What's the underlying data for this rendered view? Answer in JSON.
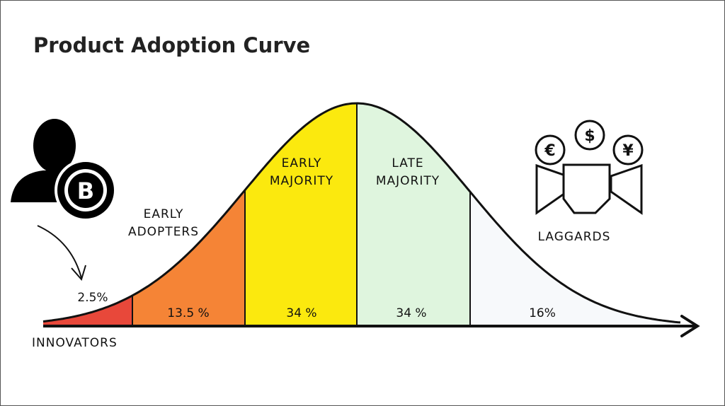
{
  "header": {
    "title": "Product Adoption Curve"
  },
  "segments": [
    {
      "label": "INNOVATORS",
      "share": "2.5%"
    },
    {
      "label": "EARLY ADOPTERS",
      "share": "13.5 %"
    },
    {
      "label": "EARLY MAJORITY",
      "share": "34 %"
    },
    {
      "label": "LATE MAJORITY",
      "share": "34 %"
    },
    {
      "label": "LAGGARDS",
      "share": "16%"
    }
  ]
}
